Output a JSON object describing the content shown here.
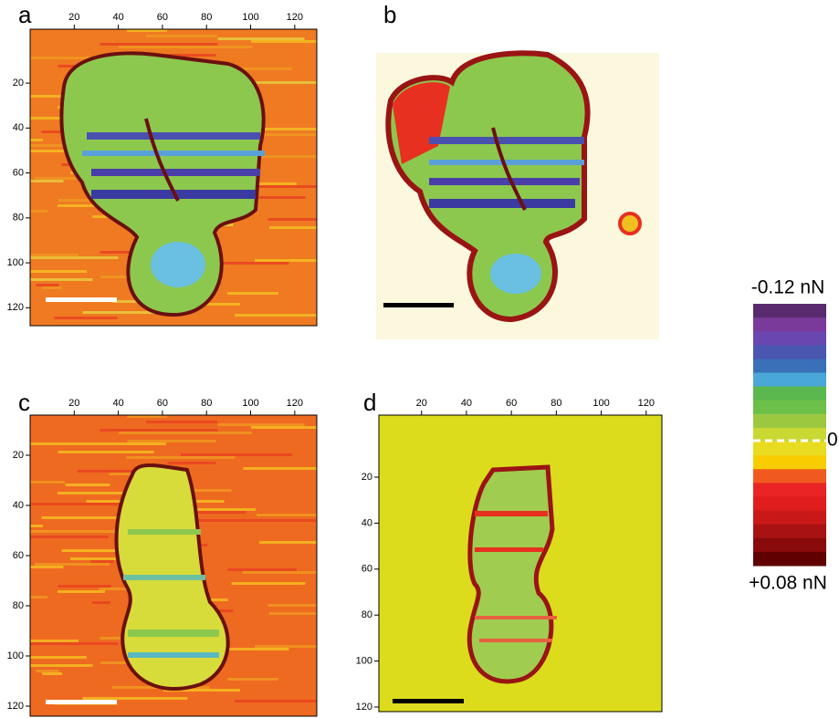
{
  "panels": [
    {
      "label": "a",
      "xticks": [
        20,
        40,
        60,
        80,
        100,
        120
      ],
      "yticks": [
        20,
        40,
        60,
        80,
        100,
        120
      ],
      "xlim": [
        0,
        130
      ],
      "ylim": [
        -4,
        128
      ]
    },
    {
      "label": "b"
    },
    {
      "label": "c",
      "xticks": [
        20,
        40,
        60,
        80,
        100,
        120
      ],
      "yticks": [
        20,
        40,
        60,
        80,
        100,
        120
      ],
      "xlim": [
        0,
        130
      ],
      "ylim": [
        4,
        124
      ]
    },
    {
      "label": "d",
      "xticks": [
        20,
        40,
        60,
        80,
        100,
        120
      ],
      "yticks": [
        20,
        40,
        60,
        80,
        100,
        120
      ],
      "xlim": [
        1,
        127
      ],
      "ylim": [
        -7,
        122
      ]
    }
  ],
  "colorbar": {
    "top_label": "-0.12 nN",
    "zero_label": "0",
    "bottom_label": "+0.08 nN",
    "colors": [
      "#5a2a6e",
      "#7a3a9a",
      "#6a46b0",
      "#4a56b0",
      "#3a70b8",
      "#4aa8d8",
      "#5ab84e",
      "#6cc04a",
      "#9cc840",
      "#cad834",
      "#e8dc20",
      "#f8cc00",
      "#f05a20",
      "#ea2424",
      "#e01c1c",
      "#c81818",
      "#a81212",
      "#880a0a",
      "#600000"
    ]
  }
}
